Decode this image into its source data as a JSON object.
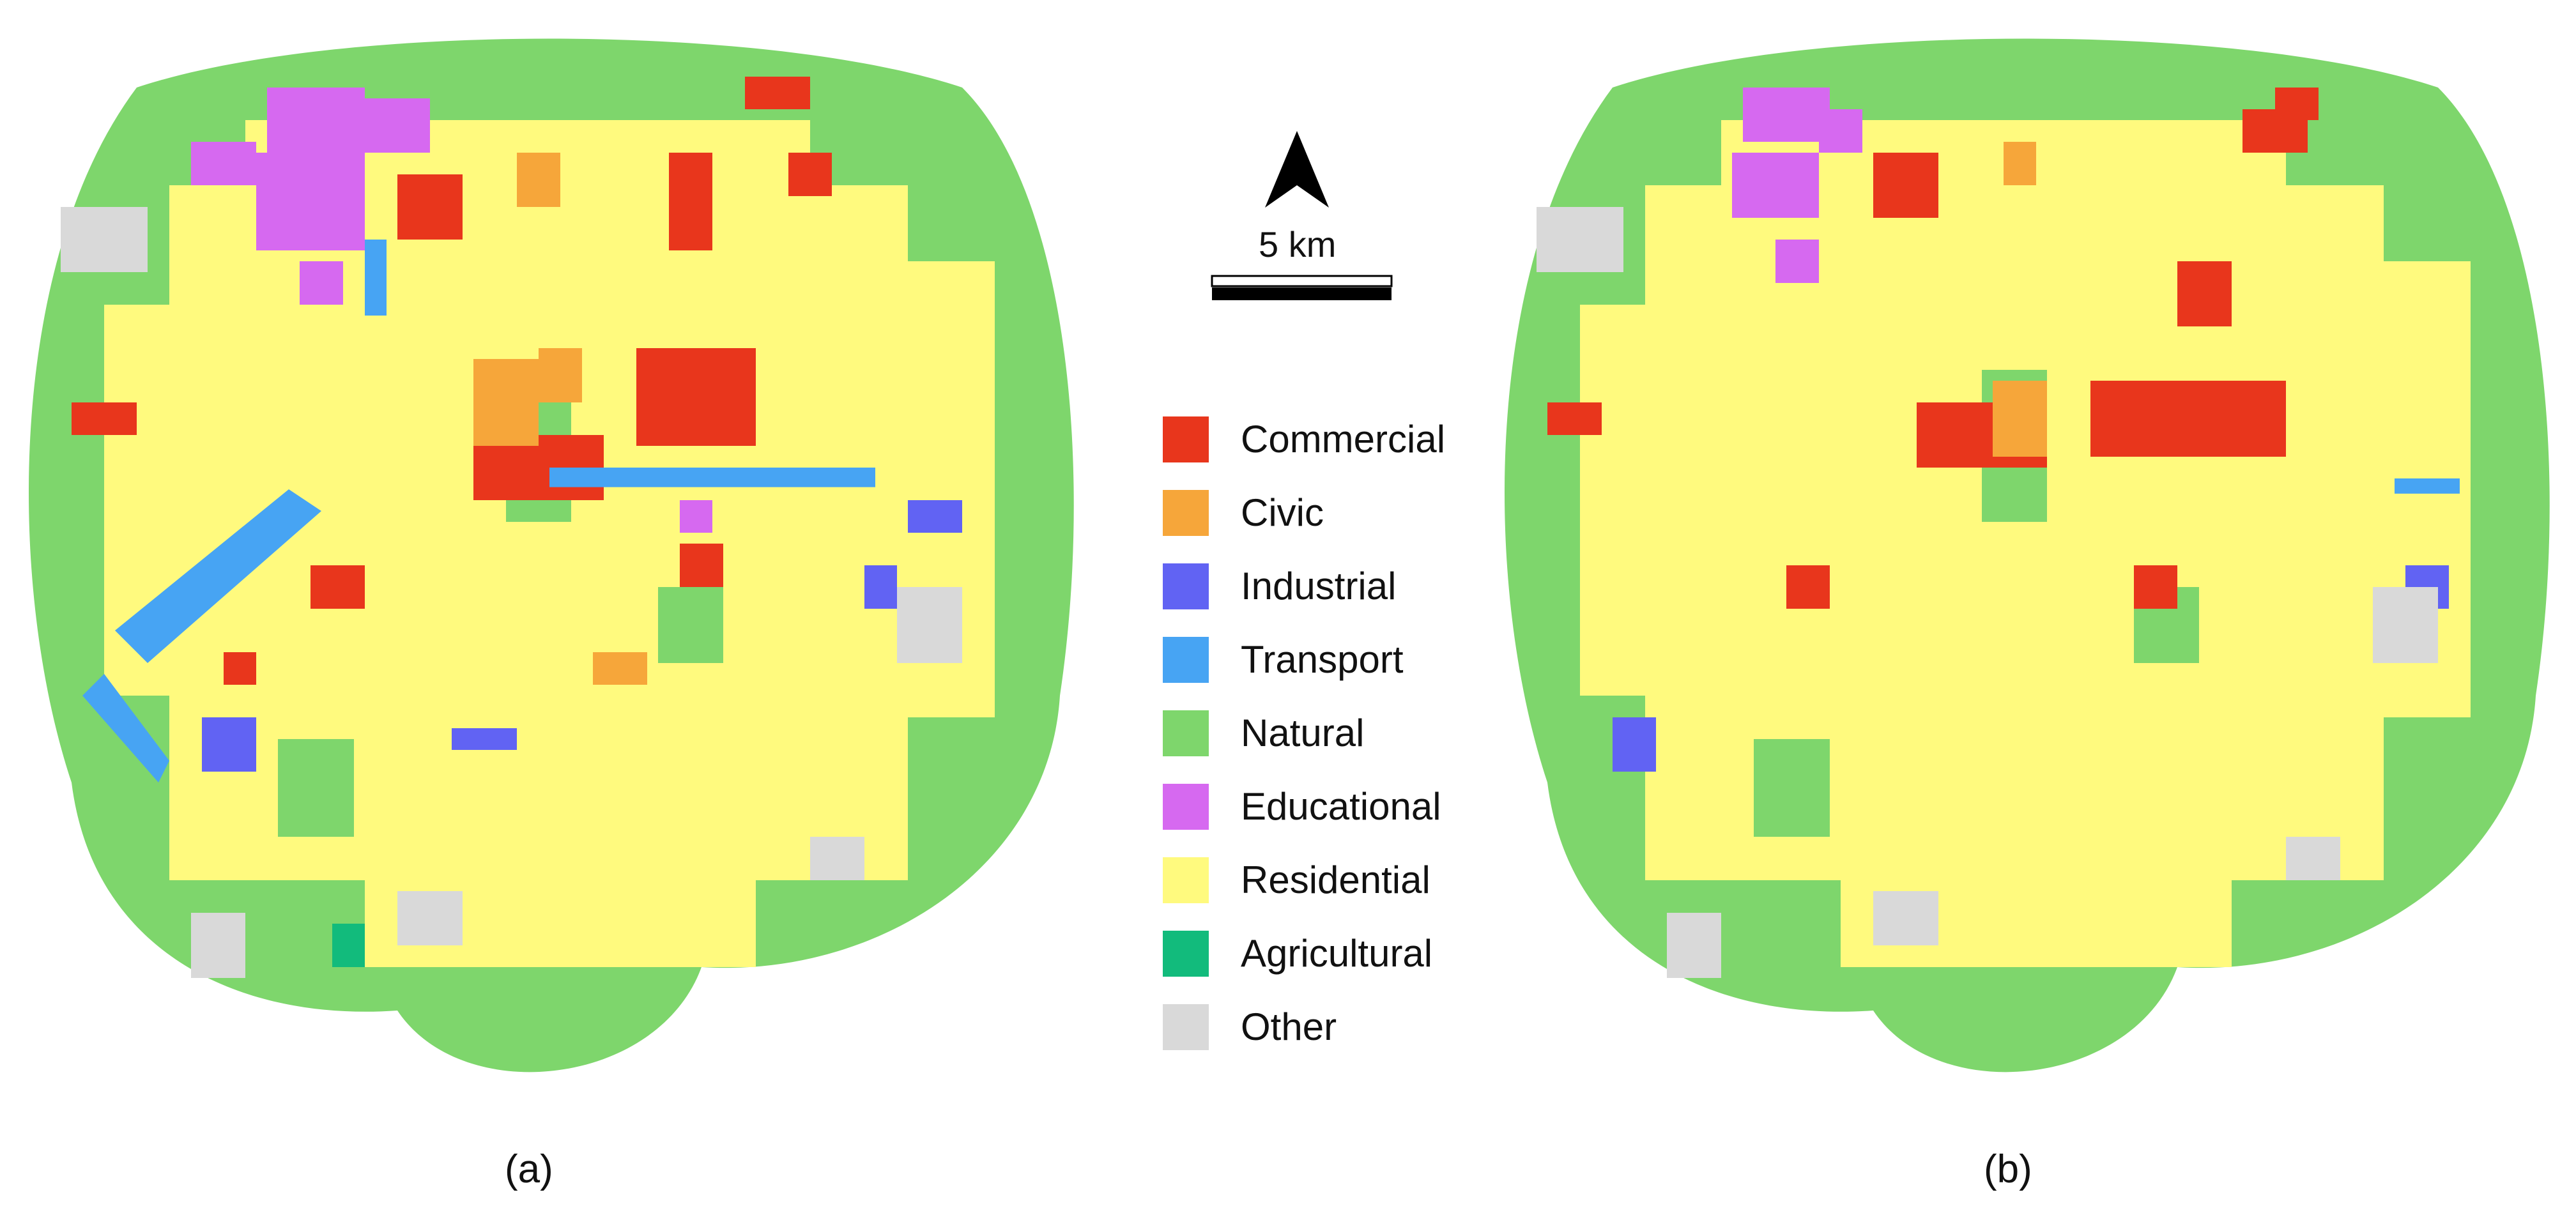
{
  "panels": [
    {
      "id": "a",
      "caption": "(a)"
    },
    {
      "id": "b",
      "caption": "(b)"
    }
  ],
  "compass": {
    "icon": "north-arrow-icon"
  },
  "scale": {
    "label": "5 km"
  },
  "legend": [
    {
      "label": "Commercial",
      "color": "#e8361c"
    },
    {
      "label": "Civic",
      "color": "#f6a63a"
    },
    {
      "label": "Industrial",
      "color": "#6163f3"
    },
    {
      "label": "Transport",
      "color": "#47a4f3"
    },
    {
      "label": "Natural",
      "color": "#7ed66c"
    },
    {
      "label": "Educational",
      "color": "#d669f0"
    },
    {
      "label": "Residential",
      "color": "#fffa7e"
    },
    {
      "label": "Agricultural",
      "color": "#12bb7c"
    },
    {
      "label": "Other",
      "color": "#d9d9d9"
    }
  ]
}
